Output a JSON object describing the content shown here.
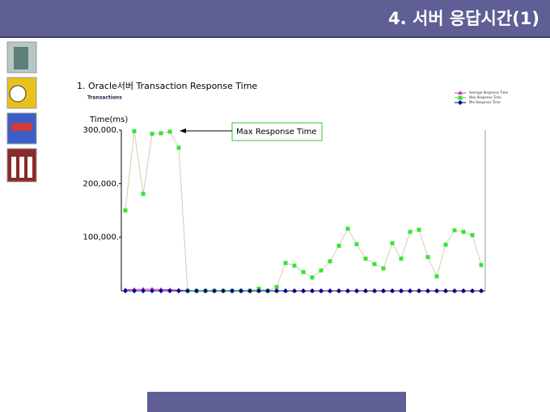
{
  "header": {
    "title": "4. 서버 응답시간(1)"
  },
  "chart_data": {
    "type": "line",
    "heading": "1. Oracle서버 Transaction Response Time",
    "subtitle": "Transactions",
    "y_label": "Time(ms)",
    "annotation": "Max Response Time",
    "categories": [
      null,
      null,
      null,
      null,
      null,
      null,
      null,
      null,
      null,
      null,
      null,
      null,
      null,
      null,
      null,
      null,
      null,
      null,
      null,
      null,
      null,
      null,
      null,
      null,
      null,
      null,
      null,
      null,
      null,
      null,
      null,
      null,
      null,
      null,
      null,
      null,
      null,
      null,
      null,
      null,
      null
    ],
    "series": [
      {
        "name": "Average Response Time",
        "color": "#cc33cc",
        "line_color": "#cc33cc",
        "marker": "triangle",
        "values": [
          2000,
          2500,
          3000,
          3000,
          2500,
          2000,
          1500,
          0,
          0,
          0,
          0,
          0,
          0,
          0,
          0,
          0,
          0,
          0,
          0,
          0,
          0,
          0,
          0,
          0,
          0,
          0,
          0,
          0,
          0,
          0,
          0,
          0,
          0,
          0,
          0,
          0,
          0,
          0,
          0,
          0,
          0
        ]
      },
      {
        "name": "Max Response Time",
        "color": "#33e633",
        "line_color": "#d9ccb0",
        "marker": "square",
        "values": [
          150000,
          298000,
          181000,
          293000,
          294000,
          297000,
          267000,
          0,
          0,
          0,
          0,
          0,
          0,
          0,
          0,
          4000,
          0,
          7000,
          52000,
          47000,
          35000,
          25000,
          38000,
          55000,
          84000,
          116000,
          87000,
          60000,
          50000,
          42000,
          89000,
          60000,
          110000,
          114000,
          63000,
          27000,
          86000,
          113000,
          110000,
          104000,
          48000
        ]
      },
      {
        "name": "Min Response Time",
        "color": "#000080",
        "line_color": "#000080",
        "marker": "diamond",
        "values": [
          0,
          0,
          0,
          0,
          0,
          0,
          0,
          0,
          0,
          0,
          0,
          0,
          0,
          0,
          0,
          0,
          0,
          0,
          0,
          0,
          0,
          0,
          0,
          0,
          0,
          0,
          0,
          0,
          0,
          0,
          0,
          0,
          0,
          0,
          0,
          0,
          0,
          0,
          0,
          0,
          0
        ]
      }
    ],
    "ylim": [
      0,
      300000
    ],
    "yticks": [
      {
        "value": 100000,
        "label": "100,000."
      },
      {
        "value": 200000,
        "label": "200,000."
      },
      {
        "value": 300000,
        "label": "300,000."
      }
    ],
    "grid": false,
    "legend": "top-right"
  }
}
